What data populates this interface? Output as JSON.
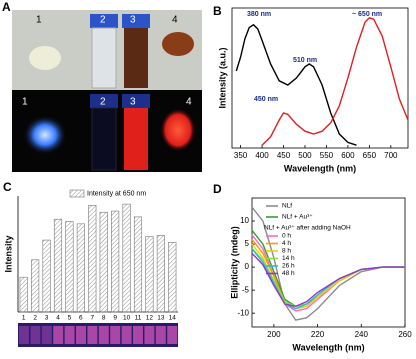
{
  "figure": {
    "panel_label": "A",
    "photo_labels": [
      "1",
      "2",
      "3",
      "4"
    ]
  },
  "chart_data": [
    {
      "type": "line",
      "label": "B",
      "xlabel": "Wavelength (nm)",
      "ylabel": "Intensity (a.u.)",
      "xlim": [
        330,
        740
      ],
      "xticks": [
        350,
        400,
        450,
        500,
        550,
        600,
        650,
        700
      ],
      "ylim": [
        0,
        100
      ],
      "annotations": [
        "380 nm",
        "510 nm",
        "450 nm",
        "~ 650 nm"
      ],
      "series": [
        {
          "color": "#000000",
          "x": [
            340,
            350,
            360,
            370,
            380,
            390,
            400,
            420,
            440,
            460,
            480,
            500,
            510,
            520,
            540,
            560,
            580,
            600,
            620
          ],
          "values": [
            55,
            65,
            78,
            86,
            88,
            85,
            77,
            60,
            48,
            45,
            50,
            58,
            60,
            58,
            45,
            25,
            10,
            4,
            2
          ]
        },
        {
          "color": "#e02020",
          "x": [
            400,
            420,
            440,
            450,
            460,
            480,
            500,
            520,
            540,
            560,
            580,
            600,
            620,
            640,
            650,
            660,
            680,
            700,
            720,
            740
          ],
          "values": [
            2,
            8,
            20,
            25,
            24,
            17,
            12,
            10,
            12,
            18,
            30,
            50,
            72,
            90,
            93,
            92,
            80,
            58,
            35,
            20
          ]
        }
      ]
    },
    {
      "type": "bar",
      "label": "C",
      "ylabel": "Intensity",
      "ylim": [
        0,
        100
      ],
      "categories": [
        "1",
        "2",
        "3",
        "4",
        "5",
        "6",
        "7",
        "8",
        "9",
        "10",
        "11",
        "12",
        "13",
        "14"
      ],
      "series": [
        {
          "name": "Intensity at 650 nm",
          "color": "#777777",
          "values": [
            30,
            45,
            62,
            80,
            78,
            76,
            92,
            86,
            87,
            93,
            82,
            65,
            66,
            60
          ]
        }
      ]
    },
    {
      "type": "line",
      "label": "D",
      "xlabel": "Wavelength (nm)",
      "ylabel": "Ellipticity (mdeg)",
      "xlim": [
        190,
        260
      ],
      "xticks": [
        200,
        220,
        240,
        260
      ],
      "ylim": [
        -13,
        15
      ],
      "yticks": [
        -10,
        -5,
        0,
        5,
        10
      ],
      "legend_title": "NLf + Au³⁺ after adding NaOH",
      "x": [
        190,
        195,
        200,
        205,
        210,
        215,
        220,
        230,
        240,
        250,
        260
      ],
      "series": [
        {
          "name": "NLf",
          "color": "#8c8c8c",
          "values": [
            13,
            10,
            2,
            -8,
            -11.5,
            -11,
            -9,
            -4,
            -1,
            0,
            0
          ]
        },
        {
          "name": "NLf + Au³⁺",
          "color": "#2ca02c",
          "values": [
            8,
            5,
            -1,
            -7,
            -8.5,
            -8,
            -6.5,
            -3,
            -0.5,
            0,
            0
          ]
        },
        {
          "name": "0 h",
          "color": "#ff66cc",
          "values": [
            7,
            4,
            -2,
            -8,
            -9.5,
            -9,
            -7,
            -3,
            -0.5,
            0,
            0
          ]
        },
        {
          "name": "4 h",
          "color": "#ff9900",
          "values": [
            6,
            3,
            -2,
            -7.5,
            -9,
            -8.5,
            -6.5,
            -3,
            -0.5,
            0,
            0
          ]
        },
        {
          "name": "8 h",
          "color": "#e6d200",
          "values": [
            5,
            2,
            -3,
            -8,
            -9,
            -8.5,
            -6.5,
            -3,
            -0.5,
            0,
            0
          ]
        },
        {
          "name": "14 h",
          "color": "#88dd44",
          "values": [
            4,
            1.5,
            -3,
            -7.5,
            -8.5,
            -8,
            -6,
            -2.5,
            -0.5,
            0,
            0
          ]
        },
        {
          "name": "26 h",
          "color": "#22bbdd",
          "values": [
            4,
            1,
            -3.5,
            -8,
            -9,
            -8,
            -6,
            -2.5,
            -0.5,
            0,
            0
          ]
        },
        {
          "name": "48 h",
          "color": "#9933cc",
          "values": [
            3,
            0.5,
            -4,
            -8,
            -8.5,
            -7.5,
            -5.5,
            -2.5,
            -0.5,
            0,
            0
          ]
        }
      ]
    }
  ]
}
